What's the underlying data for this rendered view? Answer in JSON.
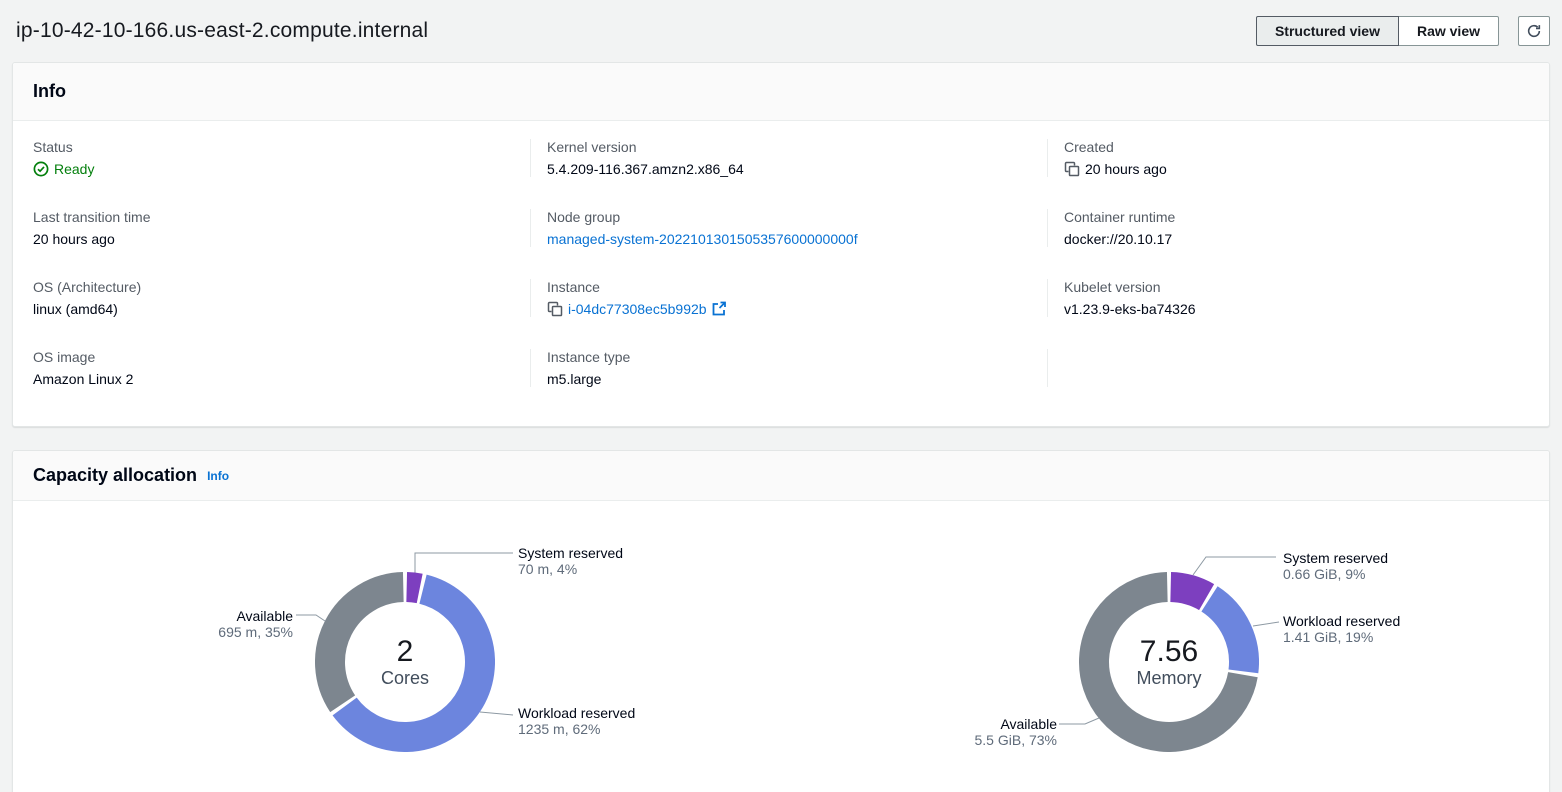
{
  "page": {
    "title": "ip-10-42-10-166.us-east-2.compute.internal"
  },
  "header": {
    "structured_view_label": "Structured view",
    "raw_view_label": "Raw view",
    "refresh_icon": "refresh-icon"
  },
  "info_panel": {
    "title": "Info",
    "fields": [
      {
        "label": "Status",
        "value": "Ready",
        "status_color": "#037f0c"
      },
      {
        "label": "Kernel version",
        "value": "5.4.209-116.367.amzn2.x86_64"
      },
      {
        "label": "Created",
        "value": "20 hours ago"
      },
      {
        "label": "Last transition time",
        "value": "20 hours ago"
      },
      {
        "label": "Node group",
        "value": "managed-system-2022101301505357600000000f"
      },
      {
        "label": "Container runtime",
        "value": "docker://20.10.17"
      },
      {
        "label": "OS (Architecture)",
        "value": "linux (amd64)"
      },
      {
        "label": "Instance",
        "value": "i-04dc77308ec5b992b"
      },
      {
        "label": "Kubelet version",
        "value": "v1.23.9-eks-ba74326"
      },
      {
        "label": "OS image",
        "value": "Amazon Linux 2"
      },
      {
        "label": "Instance type",
        "value": "m5.large"
      }
    ]
  },
  "capacity_panel": {
    "title": "Capacity allocation",
    "info_link_label": "Info"
  },
  "colors": {
    "link_blue": "#0972d3",
    "status_green": "#037f0c",
    "page_background": "#f2f3f3"
  },
  "chart_data": [
    {
      "type": "pie",
      "variant": "donut",
      "center_value": "2",
      "center_label": "Cores",
      "unit": "m",
      "segments": [
        {
          "name": "System reserved",
          "detail": "70 m, 4%",
          "value": 70,
          "pct": 4,
          "color": "#7d3fbf"
        },
        {
          "name": "Workload reserved",
          "detail": "1235 m, 62%",
          "value": 1235,
          "pct": 62,
          "color": "#6c85de"
        },
        {
          "name": "Available",
          "detail": "695 m, 35%",
          "value": 695,
          "pct": 35,
          "color": "#7d868f"
        }
      ]
    },
    {
      "type": "pie",
      "variant": "donut",
      "center_value": "7.56",
      "center_label": "Memory",
      "unit": "GiB",
      "segments": [
        {
          "name": "System reserved",
          "detail": "0.66 GiB, 9%",
          "value": 0.66,
          "pct": 9,
          "color": "#7d3fbf"
        },
        {
          "name": "Workload reserved",
          "detail": "1.41 GiB, 19%",
          "value": 1.41,
          "pct": 19,
          "color": "#6c85de"
        },
        {
          "name": "Available",
          "detail": "5.5 GiB, 73%",
          "value": 5.5,
          "pct": 73,
          "color": "#7d868f"
        }
      ]
    }
  ]
}
